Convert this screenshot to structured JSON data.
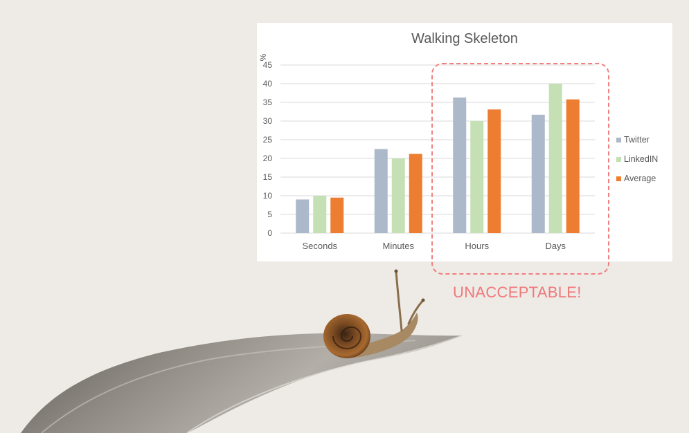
{
  "chart_data": {
    "type": "bar",
    "title": "Walking Skeleton",
    "ylabel": "%",
    "xlabel": "",
    "categories": [
      "Seconds",
      "Minutes",
      "Hours",
      "Days"
    ],
    "series": [
      {
        "name": "Twitter",
        "color": "#acb9ca",
        "values": [
          9,
          22.5,
          36.3,
          31.7
        ]
      },
      {
        "name": "LinkedIN",
        "color": "#c5e0b4",
        "values": [
          10,
          20,
          30,
          40
        ]
      },
      {
        "name": "Average",
        "color": "#ed7d31",
        "values": [
          9.5,
          21.2,
          33.1,
          35.8
        ]
      }
    ],
    "ylim": [
      0,
      45
    ],
    "yticks": [
      0,
      5,
      10,
      15,
      20,
      25,
      30,
      35,
      40,
      45
    ],
    "grid": true,
    "legend_position": "right"
  },
  "annotation": {
    "label": "UNACCEPTABLE!",
    "border_color": "#f08080"
  },
  "illustration": {
    "subject": "snail-on-leaf"
  }
}
